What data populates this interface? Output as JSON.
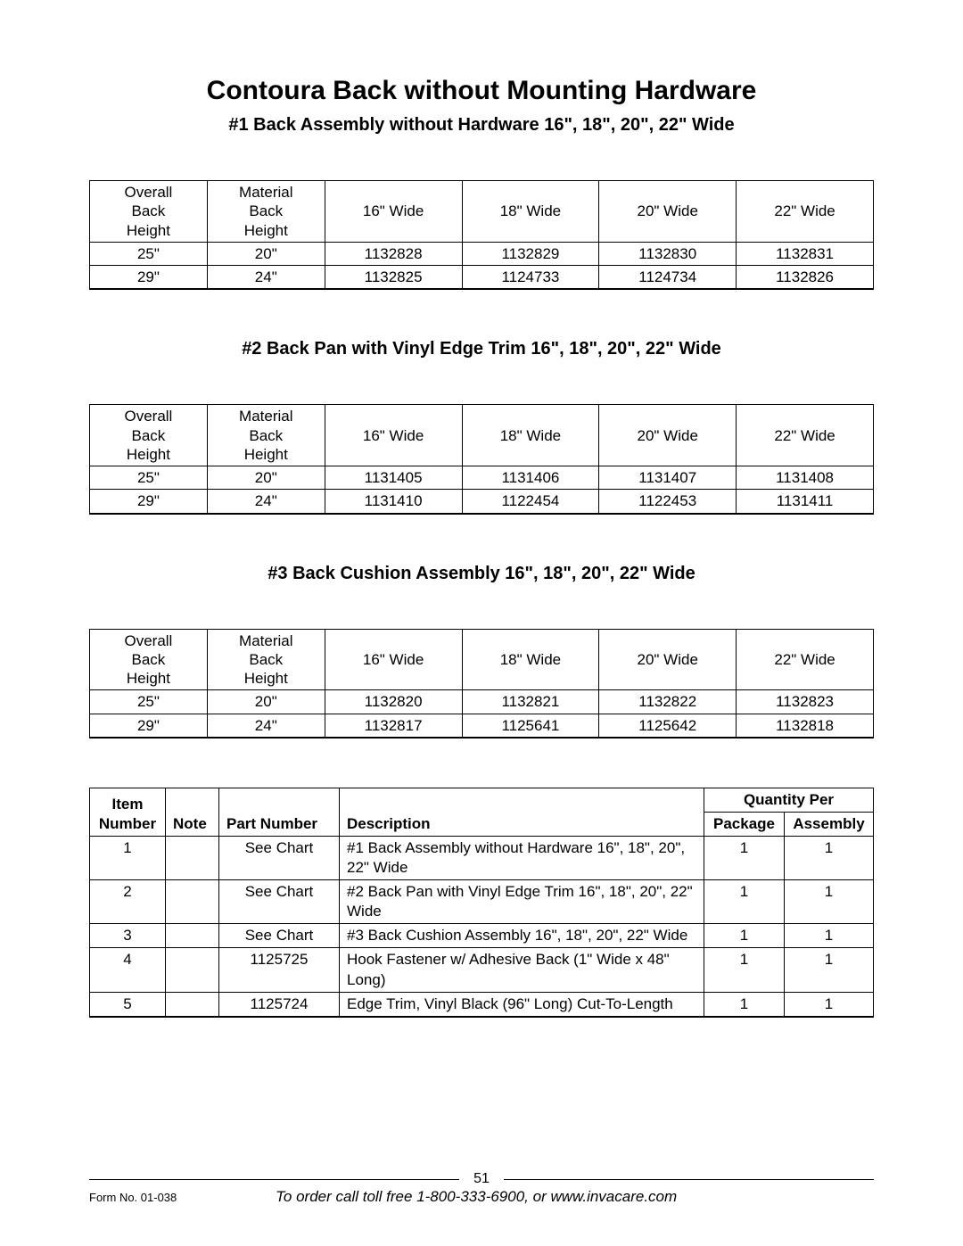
{
  "title": "Contoura Back without Mounting Hardware",
  "sections": [
    {
      "heading": "#1 Back Assembly without Hardware 16\", 18\", 20\", 22\" Wide",
      "columns": [
        "Overall Back Height",
        "Material Back Height",
        "16\" Wide",
        "18\" Wide",
        "20\" Wide",
        "22\" Wide"
      ],
      "rows": [
        [
          "25\"",
          "20\"",
          "1132828",
          "1132829",
          "1132830",
          "1132831"
        ],
        [
          "29\"",
          "24\"",
          "1132825",
          "1124733",
          "1124734",
          "1132826"
        ]
      ]
    },
    {
      "heading": "#2 Back Pan with Vinyl Edge Trim 16\", 18\", 20\", 22\" Wide",
      "columns": [
        "Overall Back Height",
        "Material Back Height",
        "16\" Wide",
        "18\" Wide",
        "20\" Wide",
        "22\" Wide"
      ],
      "rows": [
        [
          "25\"",
          "20\"",
          "1131405",
          "1131406",
          "1131407",
          "1131408"
        ],
        [
          "29\"",
          "24\"",
          "1131410",
          "1122454",
          "1122453",
          "1131411"
        ]
      ]
    },
    {
      "heading": "#3 Back Cushion Assembly 16\", 18\", 20\", 22\" Wide",
      "columns": [
        "Overall Back Height",
        "Material Back Height",
        "16\" Wide",
        "18\" Wide",
        "20\" Wide",
        "22\" Wide"
      ],
      "rows": [
        [
          "25\"",
          "20\"",
          "1132820",
          "1132821",
          "1132822",
          "1132823"
        ],
        [
          "29\"",
          "24\"",
          "1132817",
          "1125641",
          "1125642",
          "1132818"
        ]
      ]
    }
  ],
  "items_table": {
    "header_top": {
      "item": "Item",
      "qty": "Quantity Per"
    },
    "header": [
      "Number",
      "Note",
      "Part Number",
      "Description",
      "Package",
      "Assembly"
    ],
    "rows": [
      {
        "num": "1",
        "note": "",
        "part": "See Chart",
        "desc": "#1 Back Assembly without Hardware 16\", 18\", 20\", 22\" Wide",
        "pkg": "1",
        "asm": "1"
      },
      {
        "num": "2",
        "note": "",
        "part": "See Chart",
        "desc": "#2 Back Pan with Vinyl Edge Trim 16\", 18\", 20\", 22\" Wide",
        "pkg": "1",
        "asm": "1"
      },
      {
        "num": "3",
        "note": "",
        "part": "See Chart",
        "desc": "#3 Back Cushion Assembly 16\", 18\", 20\", 22\" Wide",
        "pkg": "1",
        "asm": "1"
      },
      {
        "num": "4",
        "note": "",
        "part": "1125725",
        "desc": "Hook Fastener w/ Adhesive Back (1\" Wide x 48\" Long)",
        "pkg": "1",
        "asm": "1"
      },
      {
        "num": "5",
        "note": "",
        "part": "1125724",
        "desc": "Edge Trim, Vinyl Black (96\" Long) Cut-To-Length",
        "pkg": "1",
        "asm": "1"
      }
    ]
  },
  "footer": {
    "page_number": "51",
    "form_no": "Form No. 01-038",
    "order_line": "To order call toll free 1-800-333-6900, or www.invacare.com"
  }
}
